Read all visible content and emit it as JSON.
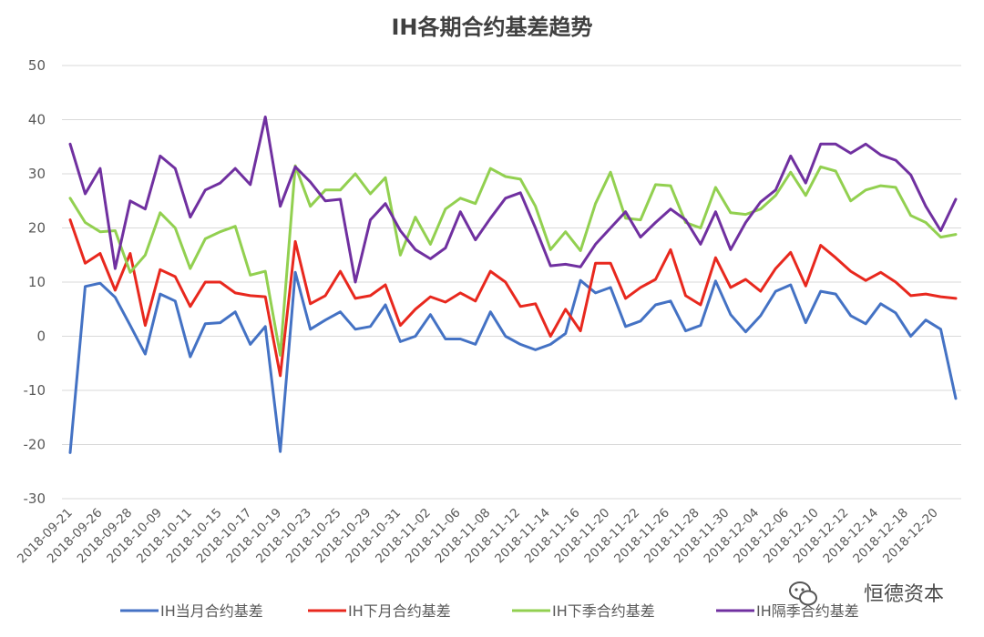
{
  "chart_data": {
    "type": "line",
    "title": "IH各期合约基差趋势",
    "xlabel": "",
    "ylabel": "",
    "ylim": [
      -30,
      50
    ],
    "yticks": [
      50,
      40,
      30,
      20,
      10,
      0,
      -10,
      -20,
      -30
    ],
    "grid": "horizontal",
    "legend_position": "bottom",
    "xtick_labels": [
      "2018-09-21",
      "2018-09-26",
      "2018-09-28",
      "2018-10-09",
      "2018-10-11",
      "2018-10-15",
      "2018-10-17",
      "2018-10-19",
      "2018-10-23",
      "2018-10-25",
      "2018-10-29",
      "2018-10-31",
      "2018-11-02",
      "2018-11-06",
      "2018-11-08",
      "2018-11-12",
      "2018-11-14",
      "2018-11-16",
      "2018-11-20",
      "2018-11-22",
      "2018-11-26",
      "2018-11-28",
      "2018-11-30",
      "2018-12-04",
      "2018-12-06",
      "2018-12-10",
      "2018-12-12",
      "2018-12-14",
      "2018-12-18",
      "2018-12-20"
    ],
    "series": [
      {
        "name": "IH当月合约基差",
        "color": "#4472c4",
        "values": [
          -21.5,
          9.2,
          9.8,
          7.2,
          2.0,
          -3.3,
          7.8,
          6.5,
          -3.8,
          2.3,
          2.5,
          4.5,
          -1.5,
          1.8,
          -21.3,
          11.8,
          1.3,
          3.0,
          4.5,
          1.3,
          1.8,
          5.8,
          -1.0,
          0.0,
          4.0,
          -0.5,
          -0.5,
          -1.5,
          4.5,
          0.0,
          -1.5,
          -2.5,
          -1.5,
          0.5,
          10.3,
          8.0,
          9.0,
          1.8,
          2.8,
          5.8,
          6.5,
          1.0,
          2.0,
          10.2,
          4.0,
          0.8,
          3.8,
          8.3,
          9.5,
          2.5,
          8.3,
          7.8,
          3.8,
          2.3,
          6.0,
          4.3,
          0.0,
          3.0,
          1.3,
          -11.5
        ]
      },
      {
        "name": "IH下月合约基差",
        "color": "#e8281e",
        "values": [
          21.5,
          13.5,
          15.3,
          8.5,
          15.3,
          2.0,
          12.3,
          11.0,
          5.5,
          10.0,
          10.0,
          8.0,
          7.5,
          7.3,
          -7.3,
          17.5,
          6.0,
          7.5,
          12.0,
          7.0,
          7.5,
          9.5,
          2.0,
          5.0,
          7.3,
          6.3,
          8.0,
          6.5,
          12.0,
          10.0,
          5.5,
          6.0,
          0.0,
          5.0,
          1.0,
          13.5,
          13.5,
          7.0,
          9.0,
          10.5,
          16.0,
          7.5,
          5.8,
          14.5,
          9.0,
          10.5,
          8.3,
          12.5,
          15.5,
          9.3,
          16.8,
          14.5,
          12.0,
          10.3,
          11.8,
          10.0,
          7.5,
          7.8,
          7.3,
          7.0
        ]
      },
      {
        "name": "IH下季合约基差",
        "color": "#92d050",
        "values": [
          25.5,
          21.0,
          19.3,
          19.5,
          11.8,
          15.0,
          22.8,
          20.0,
          12.5,
          18.0,
          19.3,
          20.3,
          11.3,
          12.0,
          -3.5,
          31.5,
          24.0,
          27.0,
          27.0,
          30.0,
          26.3,
          29.3,
          15.0,
          22.0,
          17.0,
          23.5,
          25.5,
          24.5,
          31.0,
          29.5,
          29.0,
          24.0,
          16.0,
          19.3,
          15.8,
          24.5,
          30.3,
          21.8,
          21.5,
          28.0,
          27.8,
          21.0,
          20.0,
          27.5,
          22.8,
          22.5,
          23.5,
          26.0,
          30.3,
          26.0,
          31.3,
          30.5,
          25.0,
          27.0,
          27.8,
          27.5,
          22.3,
          21.0,
          18.3,
          18.8
        ]
      },
      {
        "name": "IH隔季合约基差",
        "color": "#7030a0",
        "values": [
          35.5,
          26.3,
          31.0,
          12.5,
          25.0,
          23.5,
          33.3,
          31.0,
          22.0,
          27.0,
          28.3,
          31.0,
          28.0,
          40.5,
          24.0,
          31.3,
          28.5,
          25.0,
          25.3,
          10.0,
          21.5,
          24.5,
          19.5,
          16.0,
          14.3,
          16.3,
          23.0,
          17.8,
          21.8,
          25.5,
          26.5,
          20.0,
          13.0,
          13.3,
          12.8,
          17.0,
          20.0,
          23.0,
          18.3,
          21.0,
          23.5,
          21.5,
          17.0,
          23.0,
          16.0,
          21.0,
          24.8,
          27.0,
          33.3,
          28.3,
          35.5,
          35.5,
          33.8,
          35.5,
          33.5,
          32.5,
          29.8,
          24.0,
          19.5,
          25.3
        ]
      }
    ]
  },
  "watermark": {
    "text": "恒德资本",
    "icon": "wechat-official-account-icon"
  }
}
